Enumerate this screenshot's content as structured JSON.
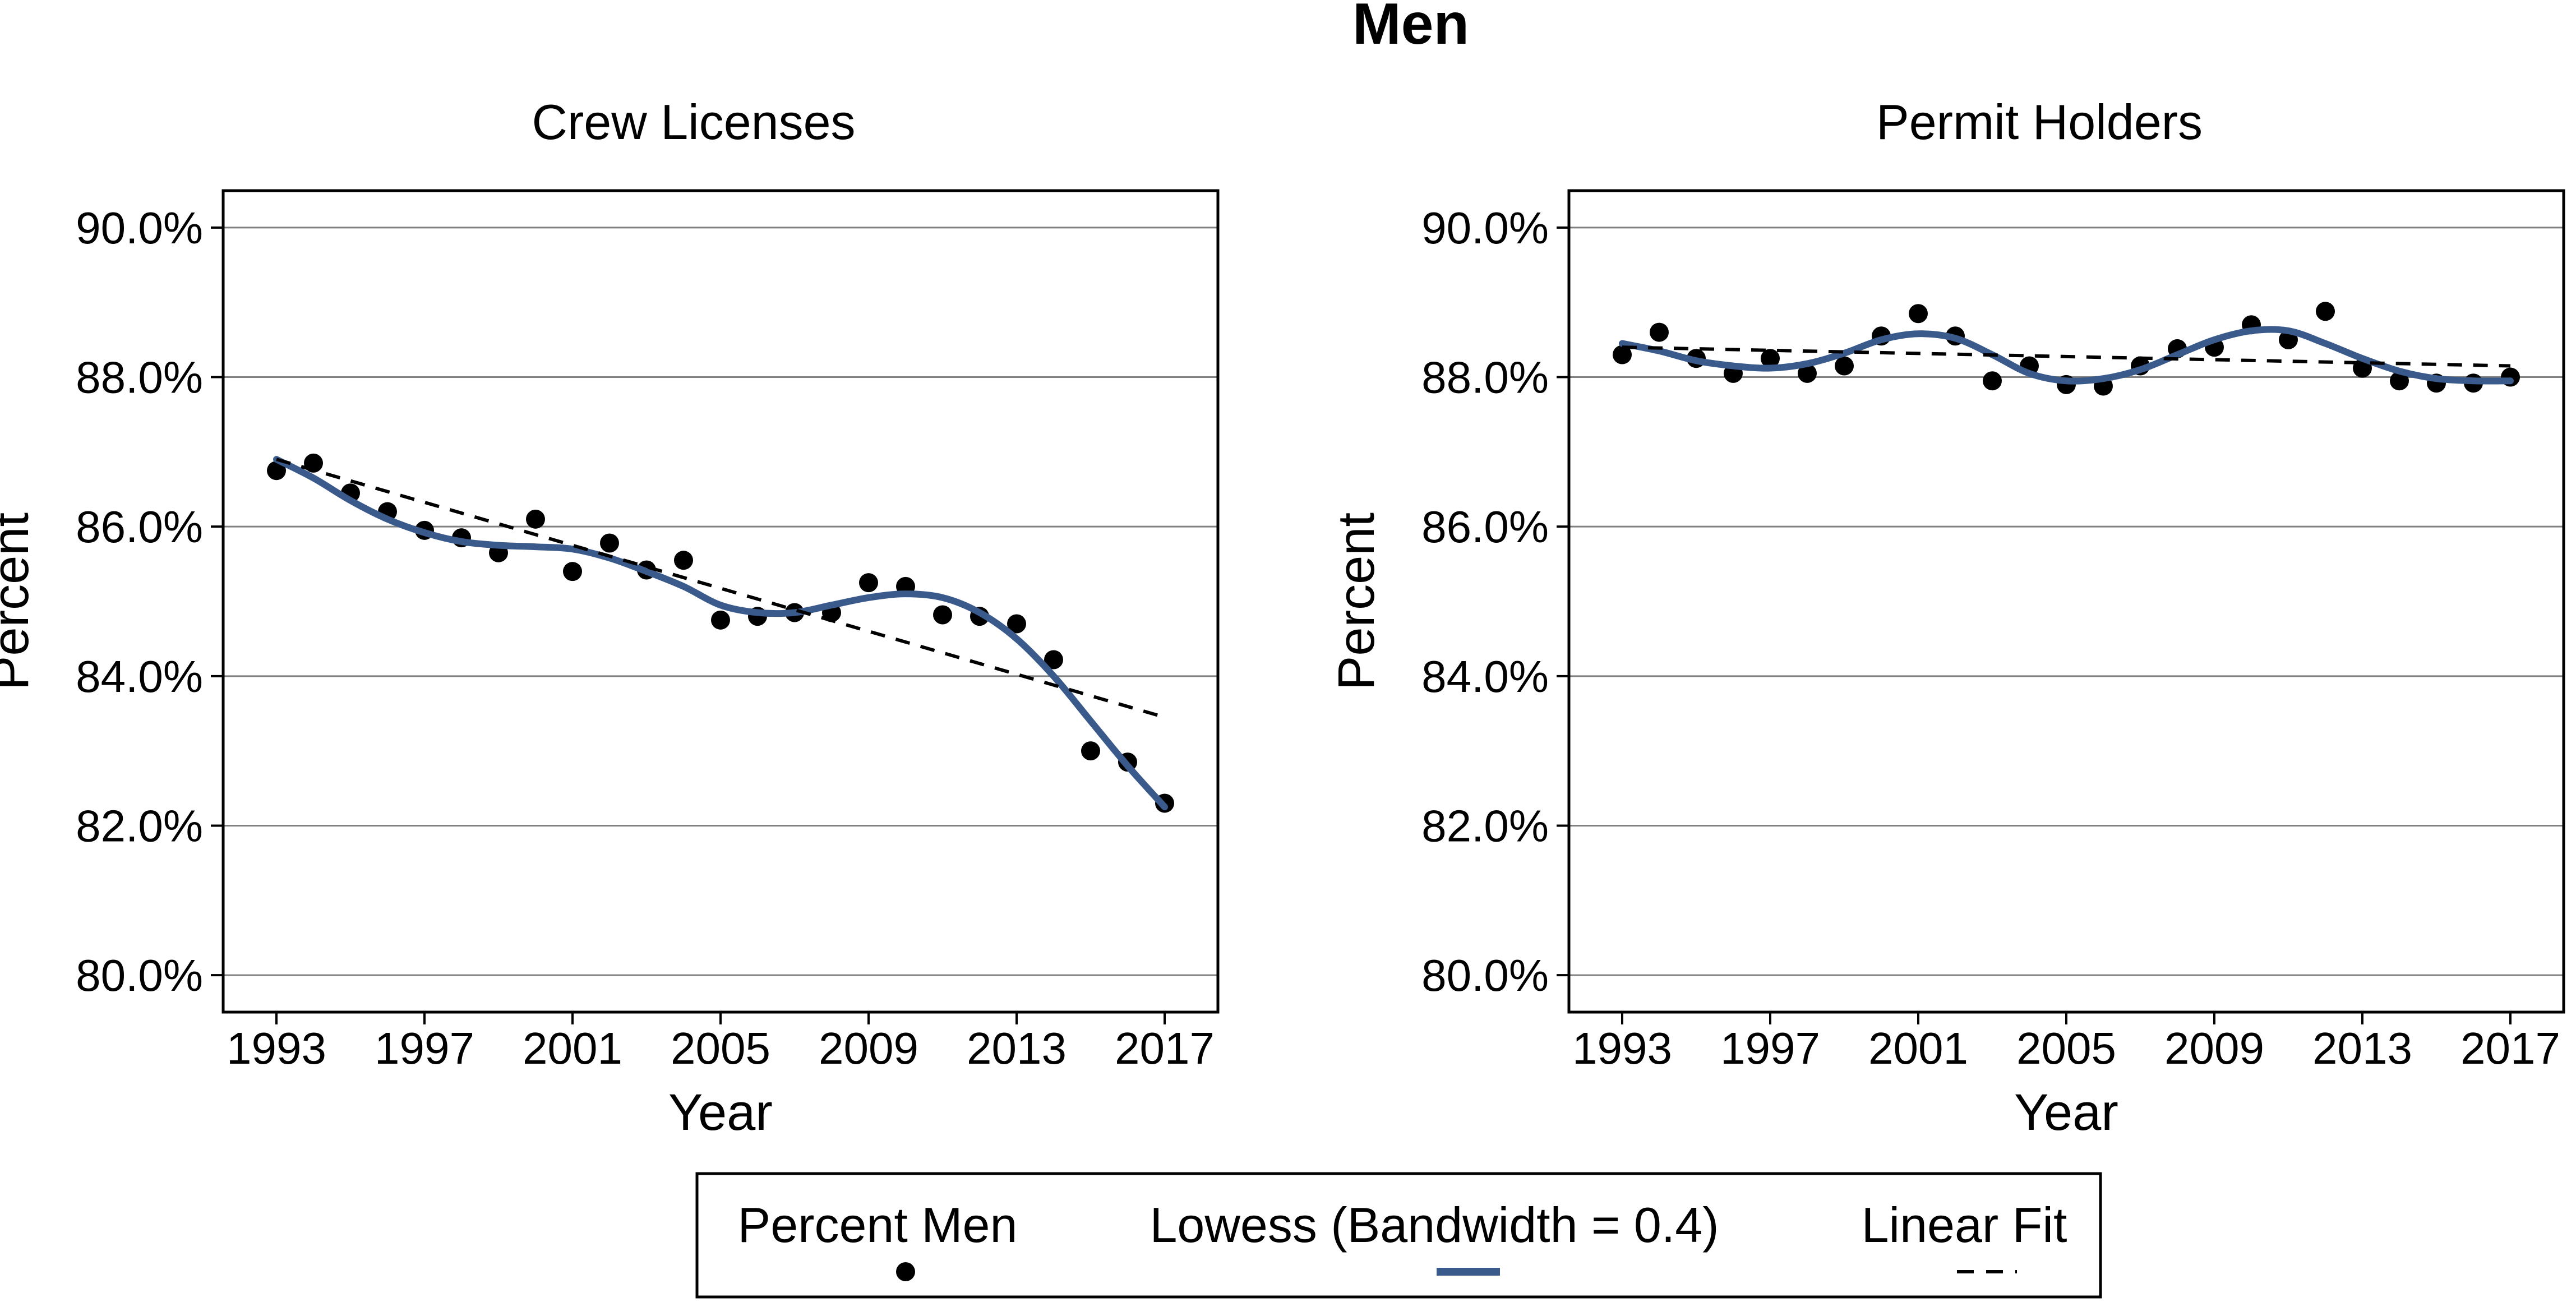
{
  "figure_title": "Men",
  "style": {
    "dot_color": "#000000",
    "lowess_color": "#3b5a8c",
    "linear_color": "#000000",
    "grid_color": "#808080",
    "background": "#ffffff"
  },
  "legend": {
    "items": [
      {
        "label": "Percent Men",
        "kind": "dot"
      },
      {
        "label": "Lowess (Bandwidth = 0.4)",
        "kind": "lowess"
      },
      {
        "label": "Linear Fit",
        "kind": "linear"
      }
    ]
  },
  "chart_data": [
    {
      "type": "scatter",
      "title": "Crew Licenses",
      "xlabel": "Year",
      "ylabel": "Percent",
      "xlim": [
        1993,
        2017
      ],
      "ylim": [
        80,
        90
      ],
      "xticks": [
        1993,
        1997,
        2001,
        2005,
        2009,
        2013,
        2017
      ],
      "yticks": [
        80,
        82,
        84,
        86,
        88,
        90
      ],
      "ytick_labels": [
        "80.0%",
        "82.0%",
        "84.0%",
        "86.0%",
        "88.0%",
        "90.0%"
      ],
      "grid": true,
      "series": [
        {
          "name": "Percent Men",
          "kind": "dot",
          "x": [
            1993,
            1994,
            1995,
            1996,
            1997,
            1998,
            1999,
            2000,
            2001,
            2002,
            2003,
            2004,
            2005,
            2006,
            2007,
            2008,
            2009,
            2010,
            2011,
            2012,
            2013,
            2014,
            2015,
            2016,
            2017
          ],
          "y": [
            86.75,
            86.85,
            86.45,
            86.2,
            85.95,
            85.85,
            85.65,
            86.1,
            85.4,
            85.78,
            85.42,
            85.55,
            84.75,
            84.8,
            84.85,
            84.85,
            85.25,
            85.2,
            84.82,
            84.8,
            84.7,
            84.22,
            83.0,
            82.85,
            82.3
          ]
        },
        {
          "name": "Lowess (Bandwidth = 0.4)",
          "kind": "lowess",
          "x": [
            1993,
            1994,
            1995,
            1996,
            1997,
            1998,
            1999,
            2000,
            2001,
            2002,
            2003,
            2004,
            2005,
            2006,
            2007,
            2008,
            2009,
            2010,
            2011,
            2012,
            2013,
            2014,
            2015,
            2016,
            2017
          ],
          "y": [
            86.9,
            86.65,
            86.35,
            86.1,
            85.92,
            85.8,
            85.75,
            85.73,
            85.7,
            85.58,
            85.4,
            85.2,
            84.95,
            84.85,
            84.85,
            84.95,
            85.05,
            85.1,
            85.05,
            84.85,
            84.5,
            84.0,
            83.4,
            82.8,
            82.25
          ]
        },
        {
          "name": "Linear Fit",
          "kind": "linear",
          "x": [
            1993,
            2017
          ],
          "y": [
            86.9,
            83.45
          ]
        }
      ]
    },
    {
      "type": "scatter",
      "title": "Permit Holders",
      "xlabel": "Year",
      "ylabel": "Percent",
      "xlim": [
        1993,
        2017
      ],
      "ylim": [
        80,
        90
      ],
      "xticks": [
        1993,
        1997,
        2001,
        2005,
        2009,
        2013,
        2017
      ],
      "yticks": [
        80,
        82,
        84,
        86,
        88,
        90
      ],
      "ytick_labels": [
        "80.0%",
        "82.0%",
        "84.0%",
        "86.0%",
        "88.0%",
        "90.0%"
      ],
      "grid": true,
      "series": [
        {
          "name": "Percent Men",
          "kind": "dot",
          "x": [
            1993,
            1994,
            1995,
            1996,
            1997,
            1998,
            1999,
            2000,
            2001,
            2002,
            2003,
            2004,
            2005,
            2006,
            2007,
            2008,
            2009,
            2010,
            2011,
            2012,
            2013,
            2014,
            2015,
            2016,
            2017
          ],
          "y": [
            88.3,
            88.6,
            88.25,
            88.05,
            88.25,
            88.05,
            88.15,
            88.55,
            88.85,
            88.55,
            87.95,
            88.15,
            87.9,
            87.88,
            88.15,
            88.38,
            88.4,
            88.7,
            88.5,
            88.88,
            88.12,
            87.95,
            87.92,
            87.92,
            88.0
          ]
        },
        {
          "name": "Lowess (Bandwidth = 0.4)",
          "kind": "lowess",
          "x": [
            1993,
            1994,
            1995,
            1996,
            1997,
            1998,
            1999,
            2000,
            2001,
            2002,
            2003,
            2004,
            2005,
            2006,
            2007,
            2008,
            2009,
            2010,
            2011,
            2012,
            2013,
            2014,
            2015,
            2016,
            2017
          ],
          "y": [
            88.45,
            88.35,
            88.22,
            88.15,
            88.12,
            88.18,
            88.32,
            88.5,
            88.58,
            88.52,
            88.3,
            88.05,
            87.95,
            87.98,
            88.1,
            88.3,
            88.5,
            88.62,
            88.62,
            88.45,
            88.25,
            88.08,
            87.98,
            87.95,
            87.95
          ]
        },
        {
          "name": "Linear Fit",
          "kind": "linear",
          "x": [
            1993,
            2017
          ],
          "y": [
            88.4,
            88.15
          ]
        }
      ]
    }
  ]
}
